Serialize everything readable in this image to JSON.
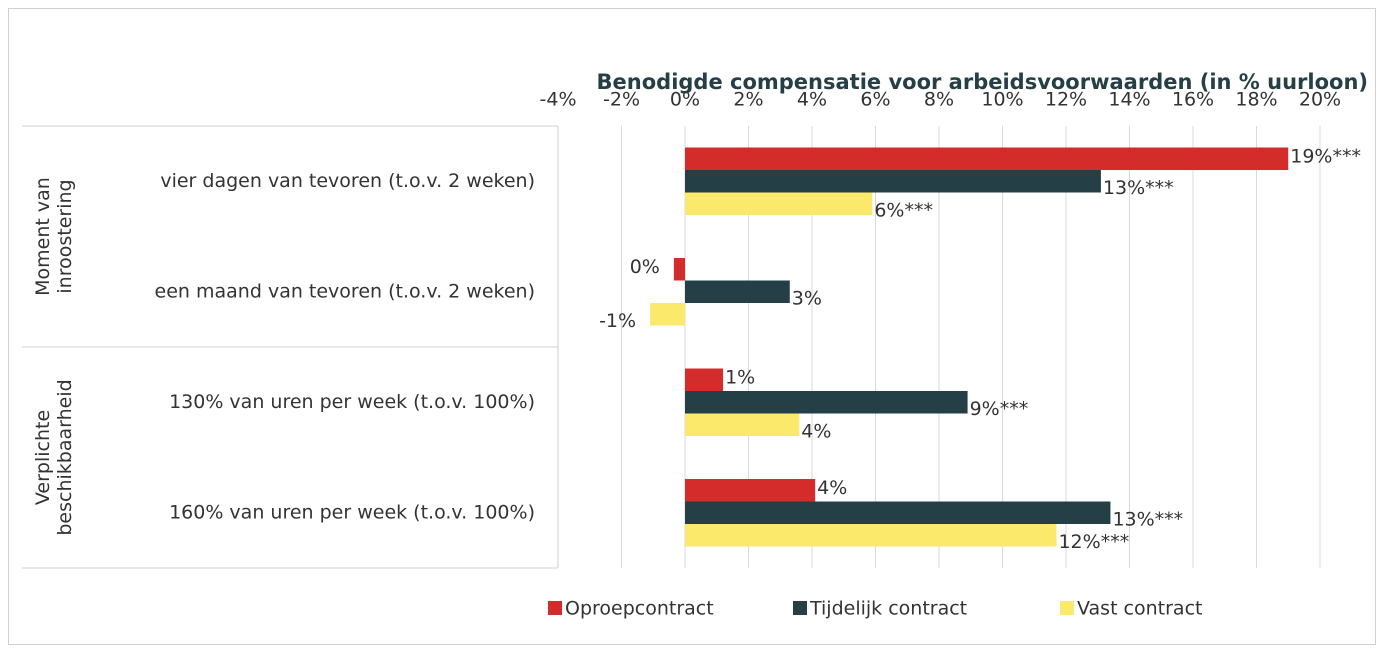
{
  "chart_data": {
    "type": "bar",
    "orientation": "horizontal",
    "title": "Benodigde compensatie voor arbeidsvoorwaarden (in % uurloon)",
    "groups": [
      {
        "label": "Moment van inroostering",
        "categories": [
          0,
          1
        ]
      },
      {
        "label": "Verplichte beschikbaarheid",
        "categories": [
          2,
          3
        ]
      }
    ],
    "categories": [
      "vier dagen van tevoren (t.o.v. 2 weken)",
      "een maand van tevoren (t.o.v. 2 weken)",
      "130% van uren per week (t.o.v. 100%)",
      "160% van uren per week (t.o.v. 100%)"
    ],
    "series": [
      {
        "name": "Oproepcontract",
        "color": "#d42b2b",
        "values": [
          19.0,
          -0.35,
          1.2,
          4.1
        ],
        "value_labels": [
          "19%***",
          "0%",
          "1%",
          "4%"
        ]
      },
      {
        "name": "Tijdelijk contract",
        "color": "#253f47",
        "values": [
          13.1,
          3.3,
          8.9,
          13.4
        ],
        "value_labels": [
          "13%***",
          "3%",
          "9%***",
          "13%***"
        ]
      },
      {
        "name": "Vast contract",
        "color": "#fbe96b",
        "values": [
          5.9,
          -1.1,
          3.6,
          11.7
        ],
        "value_labels": [
          "6%***",
          "-1%",
          "4%",
          "12%***"
        ]
      }
    ],
    "xlim": [
      -4,
      20
    ],
    "xticks": [
      {
        "value": -4,
        "label": "-4%"
      },
      {
        "value": -2,
        "label": "-2%"
      },
      {
        "value": 0,
        "label": "0%"
      },
      {
        "value": 2,
        "label": "2%"
      },
      {
        "value": 4,
        "label": "4%"
      },
      {
        "value": 6,
        "label": "6%"
      },
      {
        "value": 8,
        "label": "8%"
      },
      {
        "value": 10,
        "label": "10%"
      },
      {
        "value": 12,
        "label": "12%"
      },
      {
        "value": 14,
        "label": "14%"
      },
      {
        "value": 16,
        "label": "16%"
      },
      {
        "value": 18,
        "label": "18%"
      },
      {
        "value": 20,
        "label": "20%"
      }
    ],
    "grid": true,
    "legend": "bottom"
  }
}
